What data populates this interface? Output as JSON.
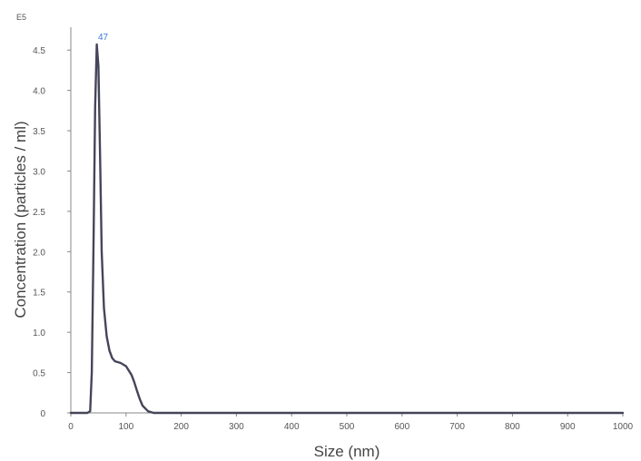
{
  "chart_data": {
    "type": "line",
    "xlabel": "Size (nm)",
    "ylabel": "Concentration (particles / ml)",
    "y_exponent_label": "E5",
    "xlim": [
      0,
      1000
    ],
    "ylim": [
      0,
      4.75
    ],
    "x_ticks": [
      0,
      100,
      200,
      300,
      400,
      500,
      600,
      700,
      800,
      900,
      1000
    ],
    "x_tick_labels": [
      "0",
      "100",
      "200",
      "300",
      "400",
      "500",
      "600",
      "700",
      "800",
      "900",
      "1000"
    ],
    "y_ticks": [
      0,
      0.5,
      1.0,
      1.5,
      2.0,
      2.5,
      3.0,
      3.5,
      4.0,
      4.5
    ],
    "y_tick_labels": [
      "0",
      "0.5",
      "1.0",
      "1.5",
      "2.0",
      "2.5",
      "3.0",
      "3.5",
      "4.0",
      "4.5"
    ],
    "grid": false,
    "legend": "none",
    "peak_label": {
      "x": 47,
      "y": 4.58,
      "text": "47"
    },
    "line_color": "#45455a",
    "peak_label_color": "#3b7bd6",
    "series": [
      {
        "x": [
          0,
          30,
          35,
          38,
          41,
          44,
          47,
          50,
          53,
          56,
          60,
          65,
          70,
          75,
          80,
          90,
          100,
          110,
          115,
          120,
          125,
          130,
          140,
          150,
          160,
          170,
          200,
          300,
          400,
          500,
          600,
          700,
          800,
          900,
          1000
        ],
        "y": [
          0,
          0,
          0.02,
          0.5,
          2.0,
          3.8,
          4.57,
          4.3,
          3.2,
          2.0,
          1.3,
          0.95,
          0.77,
          0.68,
          0.64,
          0.62,
          0.58,
          0.47,
          0.38,
          0.27,
          0.17,
          0.09,
          0.02,
          0.0,
          0,
          0,
          0,
          0,
          0,
          0,
          0,
          0,
          0,
          0,
          0
        ]
      }
    ]
  }
}
